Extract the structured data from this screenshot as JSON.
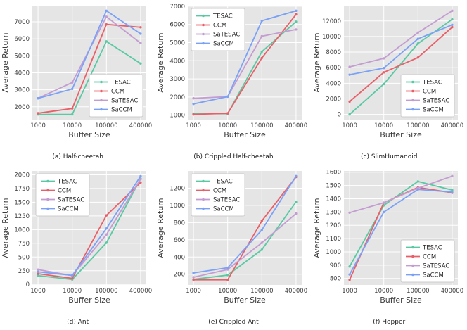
{
  "style": {
    "plot_bg": "#e5e5e5",
    "grid_color": "#ffffff",
    "legend_bg": "#ffffff",
    "legend_border": "#cccccc",
    "series_colors": {
      "TESAC": "#58c9a2",
      "CCM": "#e95f68",
      "SaTESAC": "#c39cd2",
      "SaCCM": "#7ba1f7"
    }
  },
  "chart_data": [
    {
      "type": "line",
      "caption": "(a) Half-cheetah",
      "xlabel": "Buffer Size",
      "ylabel": "Average Return",
      "x_ticklabels": [
        "1000",
        "10000",
        "100000",
        "400000"
      ],
      "yticks": [
        2000,
        3000,
        4000,
        5000,
        6000,
        7000
      ],
      "ylim": [
        1245,
        7955
      ],
      "legend_pos": "lower-right",
      "grid": true,
      "series": [
        {
          "name": "TESAC",
          "color": "#58c9a2",
          "values": [
            1550,
            1550,
            5850,
            4550
          ]
        },
        {
          "name": "CCM",
          "color": "#e95f68",
          "values": [
            1620,
            1900,
            6850,
            6680
          ]
        },
        {
          "name": "SaTESAC",
          "color": "#c39cd2",
          "values": [
            2500,
            3430,
            7300,
            5750
          ]
        },
        {
          "name": "SaCCM",
          "color": "#7ba1f7",
          "values": [
            2500,
            3050,
            7650,
            6300
          ]
        }
      ]
    },
    {
      "type": "line",
      "caption": "(b) Crippled Half-cheetah",
      "xlabel": "Buffer Size",
      "ylabel": "Average Return",
      "x_ticklabels": [
        "1000",
        "10000",
        "100000",
        "400000"
      ],
      "yticks": [
        1000,
        2000,
        3000,
        4000,
        5000,
        6000,
        7000
      ],
      "ylim": [
        755,
        7035
      ],
      "legend_pos": "upper-left",
      "grid": true,
      "series": [
        {
          "name": "TESAC",
          "color": "#58c9a2",
          "values": [
            1080,
            1080,
            4500,
            6150
          ]
        },
        {
          "name": "CCM",
          "color": "#e95f68",
          "values": [
            1040,
            1100,
            4150,
            6550
          ]
        },
        {
          "name": "SaTESAC",
          "color": "#c39cd2",
          "values": [
            1930,
            2020,
            5350,
            5720
          ]
        },
        {
          "name": "SaCCM",
          "color": "#7ba1f7",
          "values": [
            1620,
            2020,
            6200,
            6750
          ]
        }
      ]
    },
    {
      "type": "line",
      "caption": "(c) SlimHumanoid",
      "xlabel": "Buffer Size",
      "ylabel": "Average Return",
      "x_ticklabels": [
        "1000",
        "10000",
        "100000",
        "400000"
      ],
      "yticks": [
        0,
        2000,
        4000,
        6000,
        8000,
        10000,
        12000
      ],
      "ylim": [
        -665,
        13965
      ],
      "legend_pos": "lower-right",
      "grid": true,
      "series": [
        {
          "name": "TESAC",
          "color": "#58c9a2",
          "values": [
            0,
            3900,
            9100,
            12200
          ]
        },
        {
          "name": "CCM",
          "color": "#e95f68",
          "values": [
            1650,
            5400,
            7300,
            11200
          ]
        },
        {
          "name": "SaTESAC",
          "color": "#c39cd2",
          "values": [
            6100,
            7200,
            10500,
            13300
          ]
        },
        {
          "name": "SaCCM",
          "color": "#7ba1f7",
          "values": [
            5100,
            5950,
            9700,
            11500
          ]
        }
      ]
    },
    {
      "type": "line",
      "caption": "(d) Ant",
      "xlabel": "Buffer Size",
      "ylabel": "Average Return",
      "x_ticklabels": [
        "1000",
        "10000",
        "100000",
        "400000"
      ],
      "yticks": [
        0,
        250,
        500,
        750,
        1000,
        1250,
        1500,
        1750,
        2000
      ],
      "ylim": [
        -10,
        2070
      ],
      "legend_pos": "upper-left",
      "grid": true,
      "series": [
        {
          "name": "TESAC",
          "color": "#58c9a2",
          "values": [
            160,
            90,
            760,
            1930
          ]
        },
        {
          "name": "CCM",
          "color": "#e95f68",
          "values": [
            195,
            110,
            1260,
            1860
          ]
        },
        {
          "name": "SaTESAC",
          "color": "#c39cd2",
          "values": [
            270,
            160,
            910,
            1920
          ]
        },
        {
          "name": "SaCCM",
          "color": "#7ba1f7",
          "values": [
            230,
            165,
            1020,
            1975
          ]
        }
      ]
    },
    {
      "type": "line",
      "caption": "(e) Crippled Ant",
      "xlabel": "Buffer Size",
      "ylabel": "Average Return",
      "x_ticklabels": [
        "1000",
        "10000",
        "100000",
        "400000"
      ],
      "yticks": [
        200,
        400,
        600,
        800,
        1000,
        1200
      ],
      "ylim": [
        75,
        1400
      ],
      "legend_pos": "upper-left",
      "grid": true,
      "series": [
        {
          "name": "TESAC",
          "color": "#58c9a2",
          "values": [
            140,
            190,
            485,
            1040
          ]
        },
        {
          "name": "CCM",
          "color": "#e95f68",
          "values": [
            135,
            135,
            820,
            1330
          ]
        },
        {
          "name": "SaTESAC",
          "color": "#c39cd2",
          "values": [
            165,
            255,
            565,
            905
          ]
        },
        {
          "name": "SaCCM",
          "color": "#7ba1f7",
          "values": [
            215,
            275,
            715,
            1340
          ]
        }
      ]
    },
    {
      "type": "line",
      "caption": "(f) Hopper",
      "xlabel": "Buffer Size",
      "ylabel": "Average Return",
      "x_ticklabels": [
        "1000",
        "10000",
        "100000",
        "400000"
      ],
      "yticks": [
        800,
        900,
        1000,
        1100,
        1200,
        1300,
        1400,
        1500,
        1600
      ],
      "ylim": [
        751,
        1609
      ],
      "legend_pos": "lower-right",
      "grid": true,
      "series": [
        {
          "name": "TESAC",
          "color": "#58c9a2",
          "values": [
            890,
            1350,
            1530,
            1465
          ]
        },
        {
          "name": "CCM",
          "color": "#e95f68",
          "values": [
            790,
            1370,
            1485,
            1445
          ]
        },
        {
          "name": "SaTESAC",
          "color": "#c39cd2",
          "values": [
            1295,
            1370,
            1480,
            1570
          ]
        },
        {
          "name": "SaCCM",
          "color": "#7ba1f7",
          "values": [
            830,
            1300,
            1470,
            1450
          ]
        }
      ]
    }
  ]
}
